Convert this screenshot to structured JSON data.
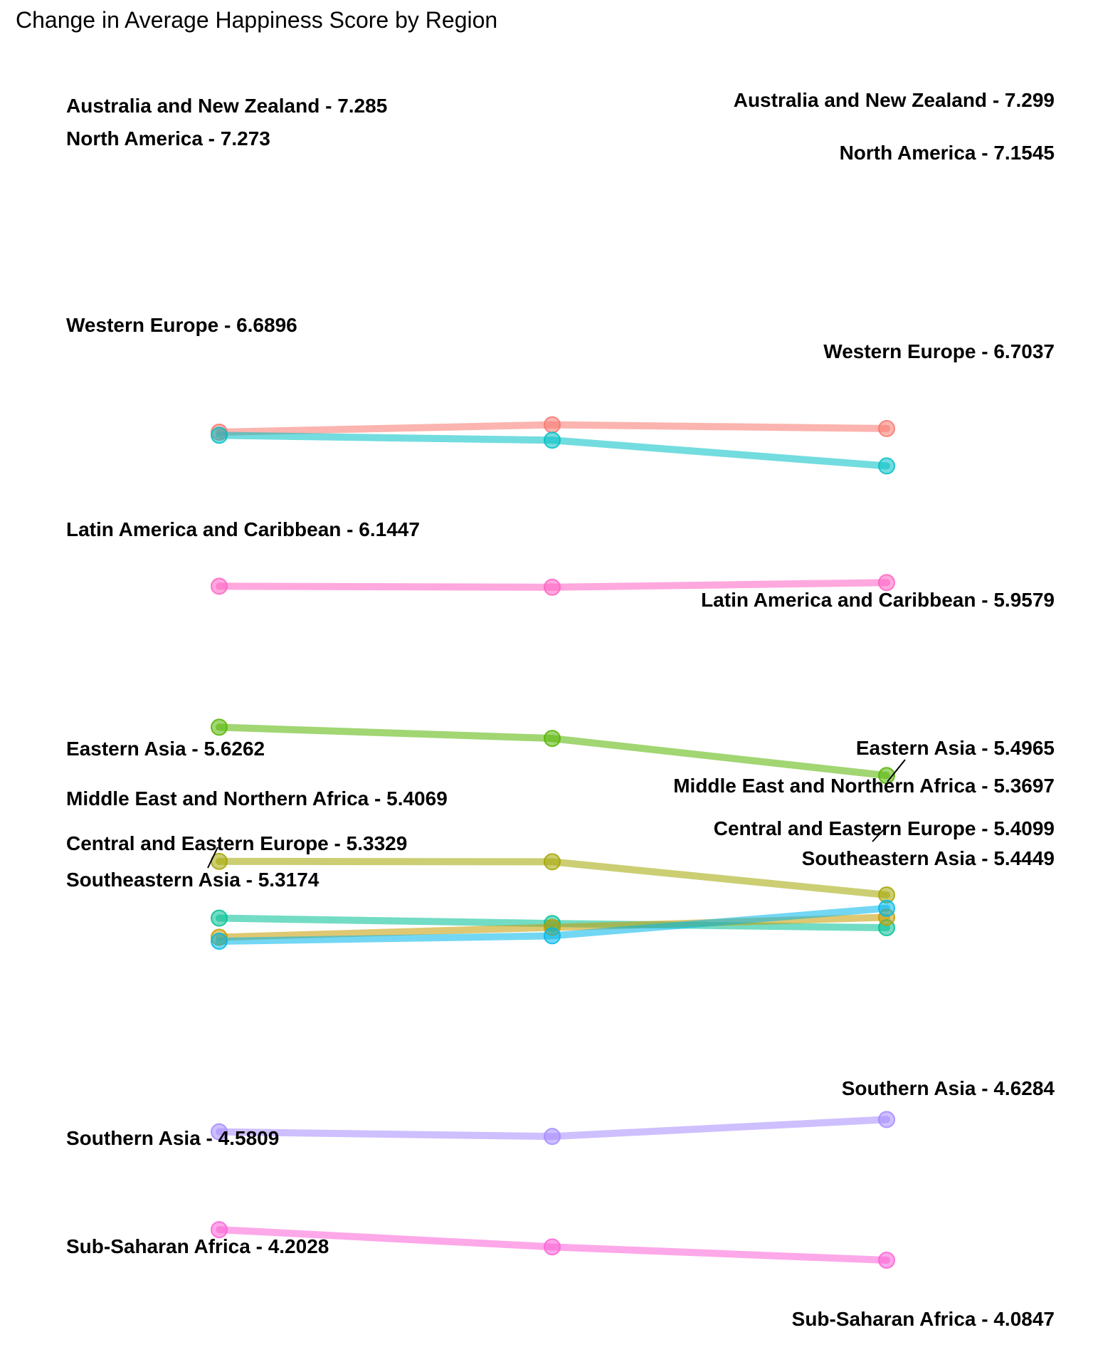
{
  "chart_data": {
    "type": "line",
    "title": "Change in Average Happiness Score by Region",
    "xlabel": "",
    "ylabel": "",
    "grid": false,
    "legend": "none",
    "series": [
      {
        "name": "Australia and New Zealand",
        "values": [
          7.285,
          7.3137,
          7.299
        ],
        "color": "#F8766D",
        "left_label": "Australia and New Zealand - 7.285",
        "right_label": "Australia and New Zealand - 7.299"
      },
      {
        "name": "North America",
        "values": [
          7.273,
          7.254,
          7.1545
        ],
        "color": "#00BFC4",
        "left_label": "North America - 7.273",
        "right_label": "North America - 7.1545"
      },
      {
        "name": "Western Europe",
        "values": [
          6.6896,
          6.6857,
          6.7037
        ],
        "color": "#FF61C3",
        "left_label": "Western Europe - 6.6896",
        "right_label": "Western Europe - 6.7037"
      },
      {
        "name": "Latin America and Caribbean",
        "values": [
          6.1447,
          6.1015,
          5.9579
        ],
        "color": "#53B400",
        "left_label": "Latin America and Caribbean - 6.1447",
        "right_label": "Latin America and Caribbean - 5.9579"
      },
      {
        "name": "Eastern Asia",
        "values": [
          5.6262,
          5.6246,
          5.4965
        ],
        "color": "#A3A500",
        "left_label": "Eastern Asia - 5.6262",
        "right_label": "Eastern Asia - 5.4965"
      },
      {
        "name": "Middle East and Northern Africa",
        "values": [
          5.4069,
          5.3861,
          5.3697
        ],
        "color": "#00C094",
        "left_label": "Middle East and Northern Africa - 5.4069",
        "right_label": "Middle East and Northern Africa - 5.3697"
      },
      {
        "name": "Central and Eastern Europe",
        "values": [
          5.3329,
          5.3707,
          5.4099
        ],
        "color": "#C49A00",
        "left_label": "Central and Eastern Europe - 5.3329",
        "right_label": "Central and Eastern Europe - 5.4099"
      },
      {
        "name": "Southeastern Asia",
        "values": [
          5.3174,
          5.3384,
          5.4449
        ],
        "color": "#00B6EB",
        "left_label": "Southeastern Asia - 5.3174",
        "right_label": "Southeastern Asia - 5.4449"
      },
      {
        "name": "Southern Asia",
        "values": [
          4.5809,
          4.563,
          4.6284
        ],
        "color": "#A58AFF",
        "left_label": "Southern Asia - 4.5809",
        "right_label": "Southern Asia - 4.6284"
      },
      {
        "name": "Sub-Saharan Africa",
        "values": [
          4.2028,
          4.1361,
          4.0847
        ],
        "color": "#FB61D7",
        "left_label": "Sub-Saharan Africa - 4.2028",
        "right_label": "Sub-Saharan Africa - 4.0847"
      }
    ]
  }
}
